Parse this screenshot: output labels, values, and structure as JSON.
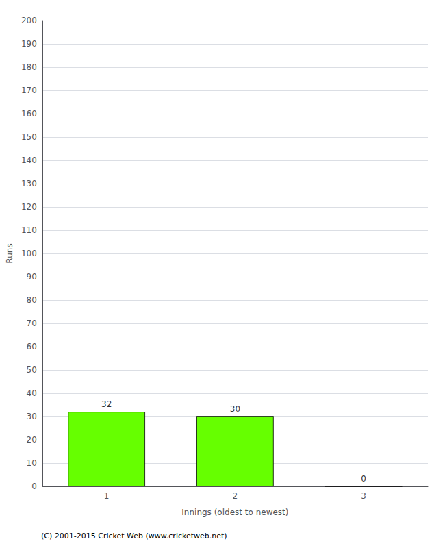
{
  "chart_data": {
    "type": "bar",
    "categories": [
      "1",
      "2",
      "3"
    ],
    "values": [
      32,
      30,
      0
    ],
    "color": "#66ff00",
    "xlabel": "Innings (oldest to newest)",
    "ylabel": "Runs",
    "ylim": [
      0,
      200
    ],
    "yticks": [
      0,
      10,
      20,
      30,
      40,
      50,
      60,
      70,
      80,
      90,
      100,
      110,
      120,
      130,
      140,
      150,
      160,
      170,
      180,
      190,
      200
    ],
    "grid": true,
    "data_labels": true,
    "footnote": "(C) 2001-2015 Cricket Web (www.cricketweb.net)"
  }
}
